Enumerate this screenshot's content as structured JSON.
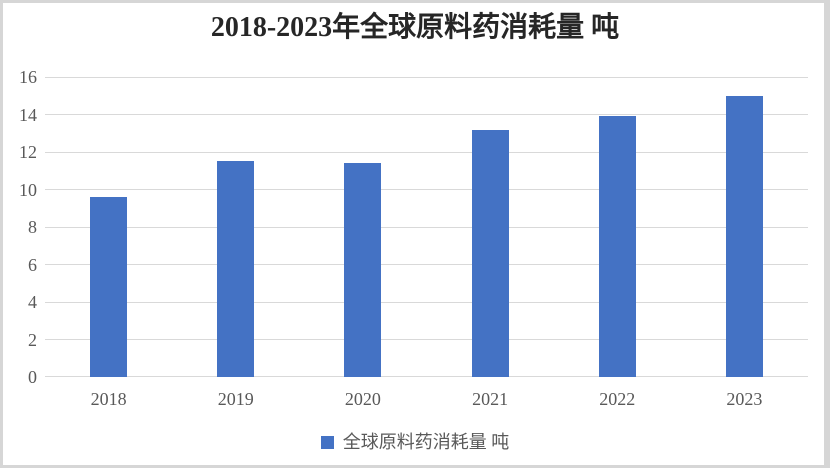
{
  "chart_data": {
    "type": "bar",
    "title": "2018-2023年全球原料药消耗量 吨",
    "categories": [
      "2018",
      "2019",
      "2020",
      "2021",
      "2022",
      "2023"
    ],
    "values": [
      9.6,
      11.5,
      11.4,
      13.2,
      13.9,
      15.0
    ],
    "series_name": "全球原料药消耗量 吨",
    "xlabel": "",
    "ylabel": "",
    "ylim": [
      0,
      16
    ],
    "yticks": [
      0,
      2,
      4,
      6,
      8,
      10,
      12,
      14,
      16
    ],
    "grid": true,
    "legend_position": "bottom",
    "colors": {
      "bar": "#4472C4",
      "gridline": "#D9D9D9",
      "axis_text": "#595959",
      "title_text": "#262626",
      "frame_border": "#D6D6D6"
    }
  }
}
